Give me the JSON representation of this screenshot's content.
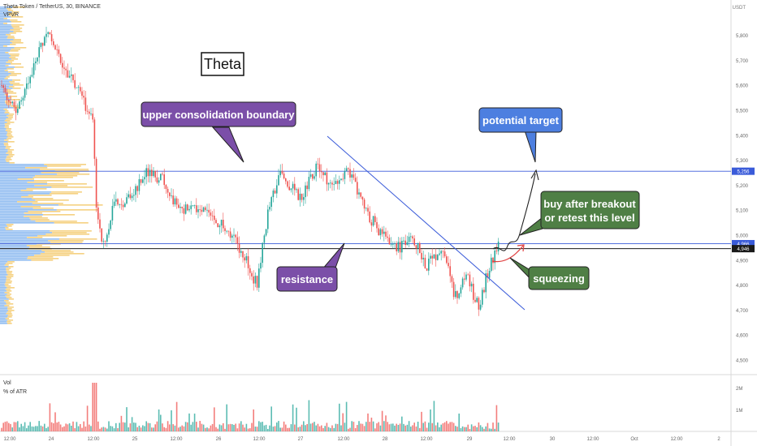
{
  "header": {
    "symbol_line": "Theta Token / TetherUS, 30, BINANCE",
    "indicator": "VPVR"
  },
  "volume_pane": {
    "title": "Vol",
    "subtitle": "% of ATR",
    "ticks": [
      "2M",
      "1M"
    ]
  },
  "chart_data": {
    "type": "candlestick",
    "y_unit": "USDT",
    "y_ticks": [
      4.5,
      4.6,
      4.7,
      4.8,
      4.9,
      5.0,
      5.1,
      5.2,
      5.3,
      5.4,
      5.5,
      5.6,
      5.7,
      5.8
    ],
    "y_tick_labels": [
      "4,500",
      "4,600",
      "4,700",
      "4,800",
      "4,900",
      "5,000",
      "5,100",
      "5,200",
      "5,300",
      "5,400",
      "5,500",
      "5,600",
      "5,700",
      "5,800"
    ],
    "ylim": [
      4.44,
      5.87
    ],
    "x_ticks": [
      "12:00",
      "24",
      "12:00",
      "25",
      "12:00",
      "26",
      "12:00",
      "27",
      "12:00",
      "28",
      "12:00",
      "29",
      "12:00",
      "30",
      "12:00",
      "Oct",
      "12:00",
      "2"
    ],
    "levels": [
      {
        "value": 5.256,
        "label": "5,256",
        "color": "#3a5bd9"
      },
      {
        "value": 4.966,
        "label": "4,966",
        "color": "#3a5bd9"
      },
      {
        "value": 4.946,
        "label": "4,946",
        "color": "#1a1a1a"
      }
    ],
    "annotations": [
      {
        "text": "Theta",
        "style": "box-white"
      },
      {
        "text": "upper consolidation boundary",
        "color": "#7b4fa8"
      },
      {
        "text": "resistance",
        "color": "#7b4fa8"
      },
      {
        "text": "potential target",
        "color": "#4d7fe0"
      },
      {
        "text": "buy after breakout\nor retest this level",
        "color": "#4f7f45"
      },
      {
        "text": "squeezing",
        "color": "#4f7f45"
      }
    ],
    "colors": {
      "up": "#26a69a",
      "down": "#ef5350",
      "vp_blue": "#7fb2ef",
      "vp_yellow": "#f3c96b",
      "level": "#3a5bd9"
    }
  }
}
